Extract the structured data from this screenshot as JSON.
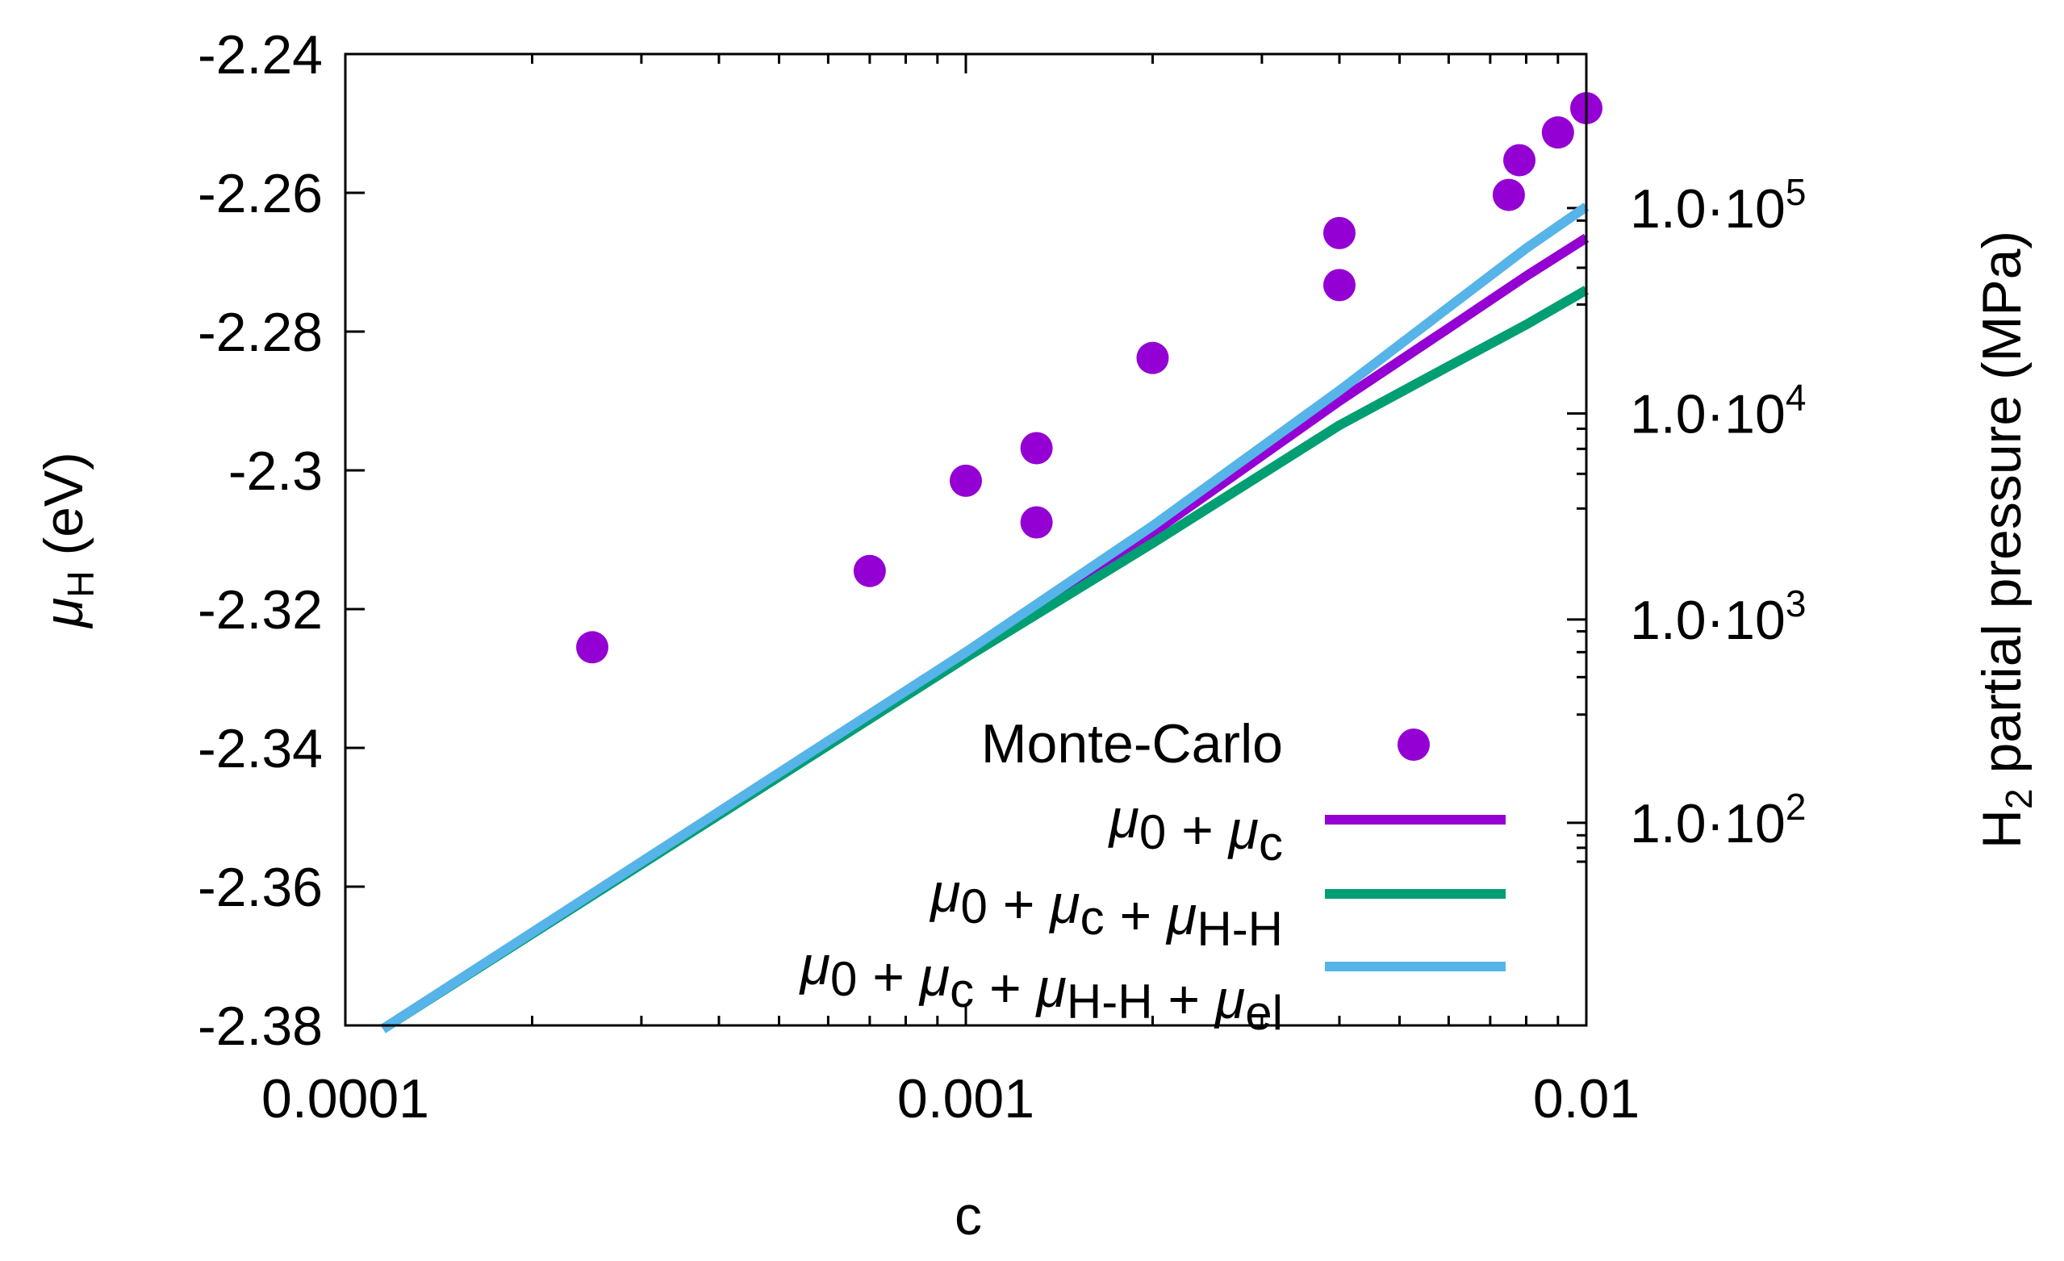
{
  "chart_data": {
    "type": "scatter",
    "title": "",
    "xscale": "log",
    "xlim": [
      0.0001,
      0.01
    ],
    "ylim": [
      -2.38,
      -2.24
    ],
    "xlabel": "c",
    "ylabel": {
      "symbol": "μ",
      "sub": "H",
      "suffix": " (eV)"
    },
    "y2label": {
      "prefix": "H",
      "sub": "2",
      "suffix": " partial pressure (MPa)"
    },
    "x_ticks": [
      {
        "value": 0.0001,
        "label": "0.0001"
      },
      {
        "value": 0.001,
        "label": "0.001"
      },
      {
        "value": 0.01,
        "label": "0.01"
      }
    ],
    "y_ticks": [
      {
        "value": -2.24,
        "label": "-2.24"
      },
      {
        "value": -2.26,
        "label": "-2.26"
      },
      {
        "value": -2.28,
        "label": "-2.28"
      },
      {
        "value": -2.3,
        "label": "-2.3"
      },
      {
        "value": -2.32,
        "label": "-2.32"
      },
      {
        "value": -2.34,
        "label": "-2.34"
      },
      {
        "value": -2.36,
        "label": "-2.36"
      },
      {
        "value": -2.38,
        "label": "-2.38"
      }
    ],
    "y2_ticks": [
      {
        "y_value": -2.2622,
        "mantissa": "1.0·10",
        "exp": "5"
      },
      {
        "y_value": -2.2918,
        "mantissa": "1.0·10",
        "exp": "4"
      },
      {
        "y_value": -2.3215,
        "mantissa": "1.0·10",
        "exp": "3"
      },
      {
        "y_value": -2.3508,
        "mantissa": "1.0·10",
        "exp": "2"
      }
    ],
    "y2_minor_ticks": [
      -2.3564,
      -2.3544,
      -2.3526,
      -2.3352,
      -2.3298,
      -2.3262,
      -2.3232,
      -2.3055,
      -2.3005,
      -2.2969,
      -2.294,
      -2.2761,
      -2.2708,
      -2.2672,
      -2.264
    ],
    "series": [
      {
        "name": "Monte-Carlo",
        "kind": "points",
        "color": "#9400D3",
        "x": [
          0.00025,
          0.0007,
          0.001,
          0.0013,
          0.0013,
          0.002,
          0.004,
          0.004,
          0.0075,
          0.0078,
          0.009,
          0.01
        ],
        "y": [
          -2.3255,
          -2.3145,
          -2.3015,
          -2.3075,
          -2.2968,
          -2.2838,
          -2.2733,
          -2.2658,
          -2.2603,
          -2.2553,
          -2.2513,
          -2.2478
        ]
      },
      {
        "name": "μ0 + μc",
        "kind": "line",
        "color": "#9400D3",
        "x": [
          0.000115,
          0.001,
          0.002,
          0.004,
          0.006,
          0.008,
          0.01
        ],
        "y": [
          -2.3805,
          -2.3265,
          -2.309,
          -2.29,
          -2.2795,
          -2.272,
          -2.2665
        ]
      },
      {
        "name": "μ0 + μc + μH-H",
        "kind": "line",
        "color": "#009E73",
        "x": [
          0.000115,
          0.001,
          0.002,
          0.004,
          0.006,
          0.008,
          0.01
        ],
        "y": [
          -2.3805,
          -2.327,
          -2.3105,
          -2.2935,
          -2.285,
          -2.279,
          -2.274
        ]
      },
      {
        "name": "μ0 + μc + μH-H + μel",
        "kind": "line",
        "color": "#56B4E9",
        "x": [
          0.000115,
          0.001,
          0.002,
          0.004,
          0.006,
          0.008,
          0.01
        ],
        "y": [
          -2.3805,
          -2.3262,
          -2.308,
          -2.2885,
          -2.2765,
          -2.268,
          -2.262
        ]
      }
    ],
    "legend": {
      "position": "bottom-right",
      "entries": [
        {
          "parts": [
            {
              "t": "Monte-Carlo"
            }
          ]
        },
        {
          "parts": [
            {
              "t": "μ",
              "i": true
            },
            {
              "t": "0",
              "sub": true
            },
            {
              "t": " + "
            },
            {
              "t": "μ",
              "i": true
            },
            {
              "t": "c",
              "sub": true
            }
          ]
        },
        {
          "parts": [
            {
              "t": "μ",
              "i": true
            },
            {
              "t": "0",
              "sub": true
            },
            {
              "t": " + "
            },
            {
              "t": "μ",
              "i": true
            },
            {
              "t": "c",
              "sub": true
            },
            {
              "t": " + "
            },
            {
              "t": "μ",
              "i": true
            },
            {
              "t": "H-H",
              "sub": true
            }
          ]
        },
        {
          "parts": [
            {
              "t": "μ",
              "i": true
            },
            {
              "t": "0",
              "sub": true
            },
            {
              "t": " + "
            },
            {
              "t": "μ",
              "i": true
            },
            {
              "t": "c",
              "sub": true
            },
            {
              "t": " + "
            },
            {
              "t": "μ",
              "i": true
            },
            {
              "t": "H-H",
              "sub": true
            },
            {
              "t": " + "
            },
            {
              "t": "μ",
              "i": true
            },
            {
              "t": "el",
              "sub": true
            }
          ]
        }
      ]
    }
  }
}
